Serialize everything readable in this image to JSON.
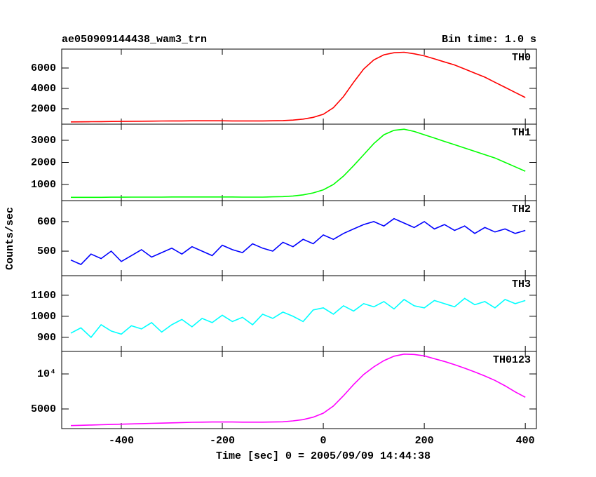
{
  "header": {
    "title": "ae050909144438_wam3_trn",
    "bin_time": "Bin time: 1.0 s"
  },
  "x_label": "Time [sec] 0 = 2005/09/09 14:44:38",
  "y_label": "Counts/sec",
  "chart_data": [
    {
      "type": "line",
      "x": [
        -500,
        -480,
        -460,
        -440,
        -420,
        -400,
        -380,
        -360,
        -340,
        -320,
        -300,
        -280,
        -260,
        -240,
        -220,
        -200,
        -180,
        -160,
        -140,
        -120,
        -100,
        -80,
        -60,
        -40,
        -20,
        0,
        20,
        40,
        60,
        80,
        100,
        120,
        140,
        160,
        180,
        200,
        220,
        240,
        260,
        280,
        300,
        320,
        340,
        360,
        380,
        400
      ],
      "series": [
        {
          "name": "TH0",
          "color": "#ff0000",
          "values": [
            700,
            710,
            720,
            730,
            740,
            750,
            760,
            770,
            780,
            790,
            800,
            800,
            810,
            810,
            810,
            810,
            800,
            800,
            800,
            800,
            810,
            830,
            880,
            980,
            1150,
            1450,
            2100,
            3200,
            4600,
            5900,
            6800,
            7300,
            7500,
            7550,
            7400,
            7200,
            6900,
            6600,
            6300,
            5900,
            5500,
            5100,
            4600,
            4100,
            3600,
            3100
          ]
        }
      ],
      "xlim": [
        -518,
        422
      ],
      "xticks": [
        -400,
        -200,
        0,
        200,
        400
      ],
      "ylim": [
        480,
        7860
      ],
      "yticks": [
        2000,
        4000,
        6000
      ]
    },
    {
      "type": "line",
      "x": [
        -500,
        -480,
        -460,
        -440,
        -420,
        -400,
        -380,
        -360,
        -340,
        -320,
        -300,
        -280,
        -260,
        -240,
        -220,
        -200,
        -180,
        -160,
        -140,
        -120,
        -100,
        -80,
        -60,
        -40,
        -20,
        0,
        20,
        40,
        60,
        80,
        100,
        120,
        140,
        160,
        180,
        200,
        220,
        240,
        260,
        280,
        300,
        320,
        340,
        360,
        380,
        400
      ],
      "series": [
        {
          "name": "TH1",
          "color": "#00ff00",
          "values": [
            420,
            420,
            420,
            420,
            425,
            425,
            430,
            430,
            430,
            430,
            435,
            435,
            435,
            435,
            435,
            435,
            435,
            430,
            430,
            430,
            440,
            450,
            480,
            530,
            620,
            760,
            1000,
            1380,
            1850,
            2350,
            2850,
            3250,
            3450,
            3500,
            3400,
            3250,
            3100,
            2950,
            2800,
            2650,
            2500,
            2350,
            2200,
            2000,
            1800,
            1600
          ]
        }
      ],
      "xlim": [
        -518,
        422
      ],
      "xticks": [
        -400,
        -200,
        0,
        200,
        400
      ],
      "ylim": [
        270,
        3730
      ],
      "yticks": [
        1000,
        2000,
        3000
      ]
    },
    {
      "type": "line",
      "x": [
        -500,
        -480,
        -460,
        -440,
        -420,
        -400,
        -380,
        -360,
        -340,
        -320,
        -300,
        -280,
        -260,
        -240,
        -220,
        -200,
        -180,
        -160,
        -140,
        -120,
        -100,
        -80,
        -60,
        -40,
        -20,
        0,
        20,
        40,
        60,
        80,
        100,
        120,
        140,
        160,
        180,
        200,
        220,
        240,
        260,
        280,
        300,
        320,
        340,
        360,
        380,
        400
      ],
      "series": [
        {
          "name": "TH2",
          "color": "#0000ff",
          "values": [
            470,
            455,
            490,
            475,
            500,
            465,
            485,
            505,
            480,
            495,
            510,
            490,
            515,
            500,
            485,
            520,
            505,
            495,
            525,
            510,
            500,
            530,
            515,
            540,
            525,
            555,
            540,
            560,
            575,
            590,
            600,
            585,
            610,
            595,
            580,
            600,
            575,
            590,
            570,
            585,
            560,
            580,
            565,
            575,
            560,
            570
          ]
        }
      ],
      "xlim": [
        -518,
        422
      ],
      "xticks": [
        -400,
        -200,
        0,
        200,
        400
      ],
      "ylim": [
        417,
        671
      ],
      "yticks": [
        500,
        600
      ]
    },
    {
      "type": "line",
      "x": [
        -500,
        -480,
        -460,
        -440,
        -420,
        -400,
        -380,
        -360,
        -340,
        -320,
        -300,
        -280,
        -260,
        -240,
        -220,
        -200,
        -180,
        -160,
        -140,
        -120,
        -100,
        -80,
        -60,
        -40,
        -20,
        0,
        20,
        40,
        60,
        80,
        100,
        120,
        140,
        160,
        180,
        200,
        220,
        240,
        260,
        280,
        300,
        320,
        340,
        360,
        380,
        400
      ],
      "series": [
        {
          "name": "TH3",
          "color": "#00ffff",
          "values": [
            920,
            945,
            900,
            960,
            930,
            915,
            955,
            940,
            970,
            925,
            960,
            985,
            950,
            990,
            970,
            1005,
            975,
            995,
            960,
            1010,
            990,
            1020,
            1000,
            975,
            1030,
            1040,
            1010,
            1050,
            1025,
            1060,
            1045,
            1070,
            1035,
            1080,
            1050,
            1040,
            1075,
            1060,
            1045,
            1085,
            1055,
            1070,
            1040,
            1080,
            1060,
            1075
          ]
        }
      ],
      "xlim": [
        -518,
        422
      ],
      "xticks": [
        -400,
        -200,
        0,
        200,
        400
      ],
      "ylim": [
        833,
        1193
      ],
      "yticks": [
        900,
        1000,
        1100
      ]
    },
    {
      "type": "line",
      "x": [
        -500,
        -480,
        -460,
        -440,
        -420,
        -400,
        -380,
        -360,
        -340,
        -320,
        -300,
        -280,
        -260,
        -240,
        -220,
        -200,
        -180,
        -160,
        -140,
        -120,
        -100,
        -80,
        -60,
        -40,
        -20,
        0,
        20,
        40,
        60,
        80,
        100,
        120,
        140,
        160,
        180,
        200,
        220,
        240,
        260,
        280,
        300,
        320,
        340,
        360,
        380,
        400
      ],
      "series": [
        {
          "name": "TH0123",
          "color": "#ff00ff",
          "values": [
            3600,
            3620,
            3640,
            3660,
            3680,
            3700,
            3720,
            3740,
            3760,
            3780,
            3800,
            3820,
            3840,
            3850,
            3860,
            3860,
            3860,
            3850,
            3850,
            3850,
            3860,
            3880,
            3950,
            4050,
            4250,
            4600,
            5300,
            6500,
            8100,
            9900,
            11500,
            13000,
            14200,
            14800,
            14700,
            14300,
            13500,
            12800,
            12000,
            11200,
            10400,
            9600,
            8800,
            7900,
            7000,
            6300
          ]
        }
      ],
      "xlim": [
        -518,
        422
      ],
      "xticks": [
        -400,
        -200,
        0,
        200,
        400
      ],
      "ylim": [
        3390,
        15600
      ],
      "yticks": [
        5000,
        {
          "value": 10000,
          "label": "10⁴"
        }
      ],
      "log_scale": true
    }
  ]
}
